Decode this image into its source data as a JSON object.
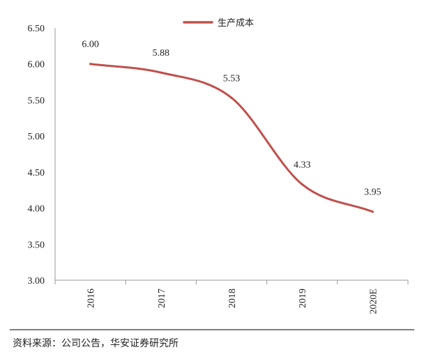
{
  "chart_data": {
    "type": "line",
    "categories": [
      "2016",
      "2017",
      "2018",
      "2019",
      "2020E"
    ],
    "series": [
      {
        "name": "生产成本",
        "values": [
          6.0,
          5.88,
          5.53,
          4.33,
          3.95
        ],
        "labels": [
          "6.00",
          "5.88",
          "5.53",
          "4.33",
          "3.95"
        ],
        "color": "#c0504d"
      }
    ],
    "ylim": [
      3.0,
      6.5
    ],
    "yticks": [
      "3.00",
      "3.50",
      "4.00",
      "4.50",
      "5.00",
      "5.50",
      "6.00",
      "6.50"
    ],
    "grid": false,
    "legend_position": "top-right",
    "smooth": true
  },
  "source": "资料来源：公司公告，华安证券研究所",
  "colors": {
    "axis": "#999999",
    "text": "#222222",
    "separator": "#333333"
  }
}
